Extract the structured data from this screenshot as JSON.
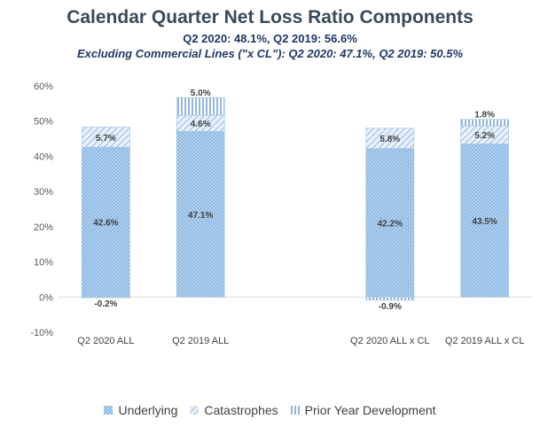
{
  "chart_data": {
    "type": "bar",
    "stacked": true,
    "title": "Calendar Quarter Net Loss Ratio Components",
    "subtitle": "Q2 2020: 48.1%, Q2 2019: 56.6%",
    "subtitle2": "Excluding Commercial Lines (\"x CL\"): Q2 2020: 47.1%, Q2 2019: 50.5%",
    "categories": [
      "Q2 2020 ALL",
      "Q2 2019 ALL",
      "",
      "Q2 2020 ALL x CL",
      "Q2 2019 ALL x CL"
    ],
    "ylim": [
      -10,
      60
    ],
    "yticks": [
      "-10%",
      "0%",
      "10%",
      "20%",
      "30%",
      "40%",
      "50%",
      "60%"
    ],
    "ytick_values": [
      -10,
      0,
      10,
      20,
      30,
      40,
      50,
      60
    ],
    "grid": false,
    "legend_position": "bottom",
    "series": [
      {
        "name": "Underlying",
        "values": [
          42.6,
          47.1,
          null,
          42.2,
          43.5
        ],
        "labels": [
          "42.6%",
          "47.1%",
          "",
          "42.2%",
          "43.5%"
        ],
        "color": "#9dc3e6"
      },
      {
        "name": "Catastrophes",
        "values": [
          5.7,
          4.6,
          null,
          5.8,
          5.2
        ],
        "labels": [
          "5.7%",
          "4.6%",
          "",
          "5.8%",
          "5.2%"
        ],
        "color": "#9dc3e6"
      },
      {
        "name": "Prior Year Development",
        "values": [
          -0.2,
          5.0,
          null,
          -0.9,
          1.8
        ],
        "labels": [
          "-0.2%",
          "5.0%",
          "",
          "-0.9%",
          "1.8%"
        ],
        "color": "#5b9bd5"
      }
    ]
  }
}
